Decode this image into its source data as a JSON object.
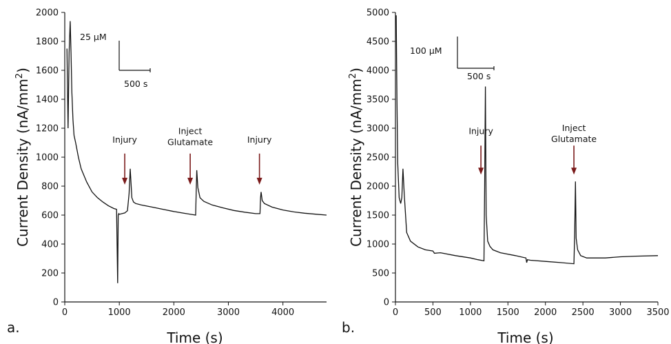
{
  "chart_data": [
    {
      "type": "line",
      "panel_label": "a.",
      "xlabel": "Time (s)",
      "ylabel_main": "Current Density (nA/mm",
      "ylabel_sup": "2",
      "ylabel_close": ")",
      "xlim": [
        0,
        4800
      ],
      "ylim": [
        0,
        2000
      ],
      "xticks": [
        0,
        1000,
        2000,
        3000,
        4000
      ],
      "yticks": [
        0,
        200,
        400,
        600,
        800,
        1000,
        1200,
        1400,
        1600,
        1800,
        2000
      ],
      "scale_bar": {
        "y_label": "25 µM",
        "x_label": "500 s"
      },
      "annotations": [
        {
          "lines": [
            "Injury"
          ],
          "x": 1100,
          "y_text": 1100,
          "y_arrow_start": 1025,
          "y_arrow_end": 810
        },
        {
          "lines": [
            "Inject",
            "Glutamate"
          ],
          "x": 2300,
          "y_text": 1160,
          "y_arrow_start": 1025,
          "y_arrow_end": 810
        },
        {
          "lines": [
            "Injury"
          ],
          "x": 3570,
          "y_text": 1100,
          "y_arrow_start": 1025,
          "y_arrow_end": 810
        }
      ],
      "series": [
        {
          "x": [
            40,
            60,
            80,
            100,
            115,
            130,
            150,
            170,
            200,
            250,
            300,
            400,
            500,
            600,
            700,
            800,
            900,
            950,
            970,
            980,
            990,
            1000,
            1050,
            1100,
            1150,
            1180,
            1200,
            1215,
            1230,
            1260,
            1300,
            1400,
            1600,
            1800,
            2000,
            2200,
            2400,
            2410,
            2420,
            2440,
            2480,
            2550,
            2700,
            2900,
            3100,
            3300,
            3500,
            3580,
            3590,
            3600,
            3620,
            3660,
            3800,
            4000,
            4200,
            4400,
            4600,
            4800
          ],
          "y": [
            1750,
            1200,
            1720,
            1940,
            1720,
            1450,
            1260,
            1150,
            1100,
            1000,
            920,
            830,
            760,
            720,
            690,
            665,
            645,
            640,
            130,
            600,
            610,
            605,
            610,
            615,
            630,
            750,
            920,
            820,
            720,
            690,
            680,
            670,
            655,
            640,
            625,
            612,
            600,
            760,
            910,
            790,
            720,
            695,
            670,
            650,
            632,
            620,
            610,
            610,
            720,
            760,
            700,
            680,
            655,
            635,
            622,
            613,
            606,
            600
          ]
        }
      ]
    },
    {
      "type": "line",
      "panel_label": "b.",
      "xlabel": "Time (s)",
      "ylabel_main": "Current Density (nA/mm",
      "ylabel_sup": "2",
      "ylabel_close": ")",
      "xlim": [
        0,
        3500
      ],
      "ylim": [
        0,
        5000
      ],
      "xticks": [
        0,
        500,
        1000,
        1500,
        2000,
        2500,
        3000,
        3500
      ],
      "yticks": [
        0,
        500,
        1000,
        1500,
        2000,
        2500,
        3000,
        3500,
        4000,
        4500,
        5000
      ],
      "scale_bar": {
        "y_label": "100 µM",
        "x_label": "500 s"
      },
      "annotations": [
        {
          "lines": [
            "Injury"
          ],
          "x": 1140,
          "y_text": 2900,
          "y_arrow_start": 2700,
          "y_arrow_end": 2200
        },
        {
          "lines": [
            "Inject",
            "Glutamate"
          ],
          "x": 2380,
          "y_text": 2950,
          "y_arrow_start": 2700,
          "y_arrow_end": 2200
        }
      ],
      "series": [
        {
          "x": [
            10,
            20,
            30,
            50,
            70,
            85,
            100,
            120,
            150,
            200,
            300,
            400,
            500,
            520,
            600,
            800,
            1000,
            1100,
            1180,
            1190,
            1200,
            1210,
            1230,
            1260,
            1300,
            1400,
            1600,
            1740,
            1750,
            1760,
            1800,
            2000,
            2200,
            2380,
            2390,
            2400,
            2410,
            2430,
            2470,
            2550,
            2800,
            3000,
            3200,
            3500
          ],
          "y": [
            4950,
            3500,
            2400,
            1800,
            1700,
            1800,
            2300,
            1800,
            1200,
            1050,
            950,
            900,
            880,
            840,
            850,
            800,
            760,
            730,
            710,
            2000,
            3720,
            1500,
            1050,
            960,
            900,
            850,
            800,
            760,
            680,
            730,
            720,
            700,
            680,
            660,
            1200,
            2080,
            1100,
            900,
            800,
            760,
            760,
            780,
            790,
            800
          ]
        }
      ]
    }
  ],
  "colors": {
    "line": "#111111",
    "arrow": "#7a1a1a",
    "axis": "#111111"
  }
}
